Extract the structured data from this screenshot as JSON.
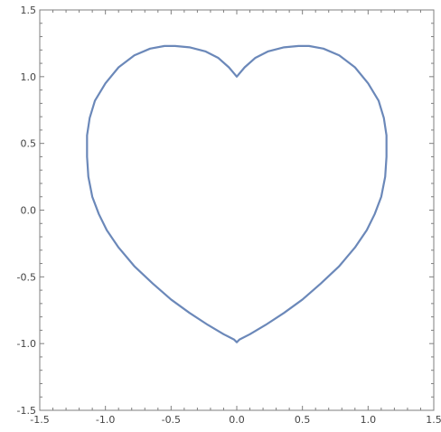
{
  "chart_data": {
    "type": "line",
    "title": "",
    "xlabel": "",
    "ylabel": "",
    "xlim": [
      -1.5,
      1.5
    ],
    "ylim": [
      -1.5,
      1.5
    ],
    "x_ticks": [
      -1.5,
      -1.0,
      -0.5,
      0.0,
      0.5,
      1.0,
      1.5
    ],
    "y_ticks": [
      -1.5,
      -1.0,
      -0.5,
      0.0,
      0.5,
      1.0,
      1.5
    ],
    "x_tick_labels": [
      "-1.5",
      "-1.0",
      "-0.5",
      "0.0",
      "0.5",
      "1.0",
      "1.5"
    ],
    "y_tick_labels": [
      "-1.5",
      "-1.0",
      "-0.5",
      "0.0",
      "0.5",
      "1.0",
      "1.5"
    ],
    "grid": false,
    "legend": "none",
    "colors": {
      "curve": "#6b88b9",
      "frame": "#7f7f7f",
      "tick_text": "#444444"
    },
    "series": [
      {
        "closed": true,
        "x": [
          0.0,
          0.06,
          0.14,
          0.24,
          0.36,
          0.47,
          0.55,
          0.66,
          0.78,
          0.9,
          1.0,
          1.08,
          1.12,
          1.14,
          1.14,
          1.13,
          1.1,
          1.05,
          0.99,
          0.9,
          0.78,
          0.64,
          0.5,
          0.36,
          0.22,
          0.1,
          0.02,
          0.0,
          -0.02,
          -0.1,
          -0.22,
          -0.36,
          -0.5,
          -0.64,
          -0.78,
          -0.9,
          -0.99,
          -1.05,
          -1.1,
          -1.13,
          -1.14,
          -1.14,
          -1.12,
          -1.08,
          -1.0,
          -0.9,
          -0.78,
          -0.66,
          -0.55,
          -0.47,
          -0.36,
          -0.24,
          -0.14,
          -0.06,
          0.0
        ],
        "y": [
          1.0,
          1.07,
          1.14,
          1.19,
          1.22,
          1.23,
          1.23,
          1.21,
          1.16,
          1.07,
          0.95,
          0.82,
          0.69,
          0.56,
          0.4,
          0.25,
          0.1,
          -0.03,
          -0.15,
          -0.28,
          -0.42,
          -0.55,
          -0.67,
          -0.77,
          -0.86,
          -0.93,
          -0.97,
          -0.99,
          -0.97,
          -0.93,
          -0.86,
          -0.77,
          -0.67,
          -0.55,
          -0.42,
          -0.28,
          -0.15,
          -0.03,
          0.1,
          0.25,
          0.4,
          0.56,
          0.69,
          0.82,
          0.95,
          1.07,
          1.16,
          1.21,
          1.23,
          1.23,
          1.22,
          1.19,
          1.14,
          1.07,
          1.0
        ]
      }
    ]
  }
}
